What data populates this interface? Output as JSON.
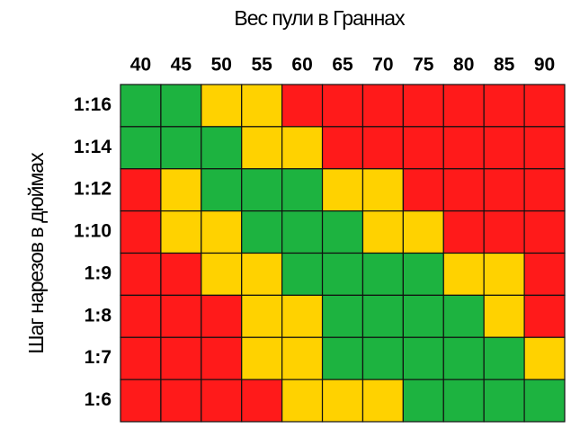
{
  "chart_data": {
    "type": "heatmap",
    "title": "Вес пули в Граннах",
    "y_label": "Шаг нарезов в дюймах",
    "x": [
      40,
      45,
      50,
      55,
      60,
      65,
      70,
      75,
      80,
      85,
      90
    ],
    "categories": [
      "1:16",
      "1:14",
      "1:12",
      "1:10",
      "1:9",
      "1:8",
      "1:7",
      "1:6"
    ],
    "colors": [
      [
        "#1db340",
        "#1db340",
        "#ffd200",
        "#ffd200",
        "#ff1a1a",
        "#ff1a1a",
        "#ff1a1a",
        "#ff1a1a",
        "#ff1a1a",
        "#ff1a1a",
        "#ff1a1a"
      ],
      [
        "#1db340",
        "#1db340",
        "#1db340",
        "#ffd200",
        "#ffd200",
        "#ff1a1a",
        "#ff1a1a",
        "#ff1a1a",
        "#ff1a1a",
        "#ff1a1a",
        "#ff1a1a"
      ],
      [
        "#ff1a1a",
        "#ffd200",
        "#1db340",
        "#1db340",
        "#1db340",
        "#ffd200",
        "#ffd200",
        "#ff1a1a",
        "#ff1a1a",
        "#ff1a1a",
        "#ff1a1a"
      ],
      [
        "#ff1a1a",
        "#ffd200",
        "#ffd200",
        "#1db340",
        "#1db340",
        "#1db340",
        "#ffd200",
        "#ffd200",
        "#ff1a1a",
        "#ff1a1a",
        "#ff1a1a"
      ],
      [
        "#ff1a1a",
        "#ff1a1a",
        "#ffd200",
        "#ffd200",
        "#1db340",
        "#1db340",
        "#1db340",
        "#1db340",
        "#ffd200",
        "#ffd200",
        "#ff1a1a"
      ],
      [
        "#ff1a1a",
        "#ff1a1a",
        "#ff1a1a",
        "#ffd200",
        "#ffd200",
        "#1db340",
        "#1db340",
        "#1db340",
        "#1db340",
        "#ffd200",
        "#ff1a1a"
      ],
      [
        "#ff1a1a",
        "#ff1a1a",
        "#ff1a1a",
        "#ffd200",
        "#ffd200",
        "#1db340",
        "#1db340",
        "#1db340",
        "#1db340",
        "#1db340",
        "#ffd200"
      ],
      [
        "#ff1a1a",
        "#ff1a1a",
        "#ff1a1a",
        "#ff1a1a",
        "#ffd200",
        "#ffd200",
        "#ffd200",
        "#1db340",
        "#1db340",
        "#1db340",
        "#1db340"
      ]
    ]
  }
}
